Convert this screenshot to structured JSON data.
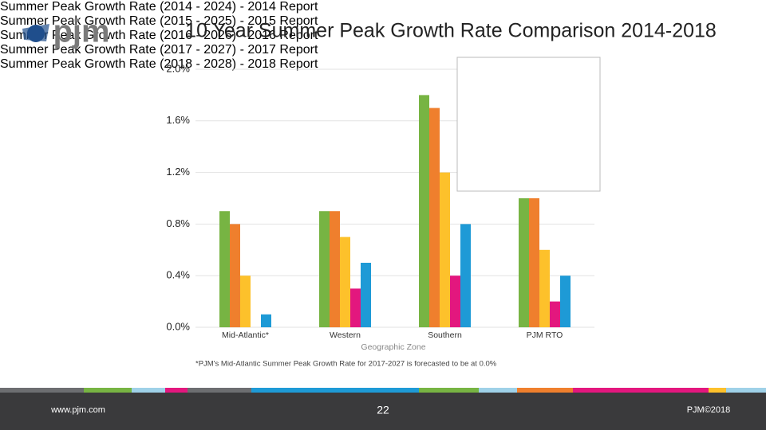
{
  "slide": {
    "logo": "pjm",
    "title": "10 Year Summer Peak Growth Rate Comparison 2014-2018",
    "website": "www.pjm.com",
    "page_number": "22",
    "copyright": "PJM©2018"
  },
  "chart_data": {
    "type": "bar",
    "x_label": "Geographic Zone",
    "footnote": "*PJM's Mid-Atlantic Summer Peak Growth Rate for 2017-2027 is forecasted to be at 0.0%",
    "categories": [
      "Mid-Atlantic*",
      "Western",
      "Southern",
      "PJM RTO"
    ],
    "series": [
      {
        "name": "Summer Peak Growth Rate (2014 - 2024) - 2014 Report",
        "color": "#77b443",
        "values": [
          0.9,
          0.9,
          1.8,
          1.0
        ]
      },
      {
        "name": "Summer Peak Growth Rate (2015 - 2025) - 2015 Report",
        "color": "#ef7f2d",
        "values": [
          0.8,
          0.9,
          1.7,
          1.0
        ]
      },
      {
        "name": "Summer Peak Growth Rate (2016 - 2026) - 2016 Report",
        "color": "#fdc12b",
        "values": [
          0.4,
          0.7,
          1.2,
          0.6
        ]
      },
      {
        "name": "Summer Peak Growth Rate (2017 - 2027) - 2017 Report",
        "color": "#e3177e",
        "values": [
          0.0,
          0.3,
          0.4,
          0.2
        ]
      },
      {
        "name": "Summer Peak Growth Rate (2018 - 2028) - 2018 Report",
        "color": "#1e9ad6",
        "values": [
          0.1,
          0.5,
          0.8,
          0.4
        ]
      }
    ],
    "ylim": [
      0,
      2.0
    ],
    "yticks": [
      {
        "value": 0,
        "label": "0.0%"
      },
      {
        "value": 0.4,
        "label": "0.4%"
      },
      {
        "value": 0.8,
        "label": "0.8%"
      },
      {
        "value": 1.2,
        "label": "1.2%"
      },
      {
        "value": 1.6,
        "label": "1.6%"
      },
      {
        "value": 2.0,
        "label": "2.0%"
      }
    ],
    "grid": true
  }
}
